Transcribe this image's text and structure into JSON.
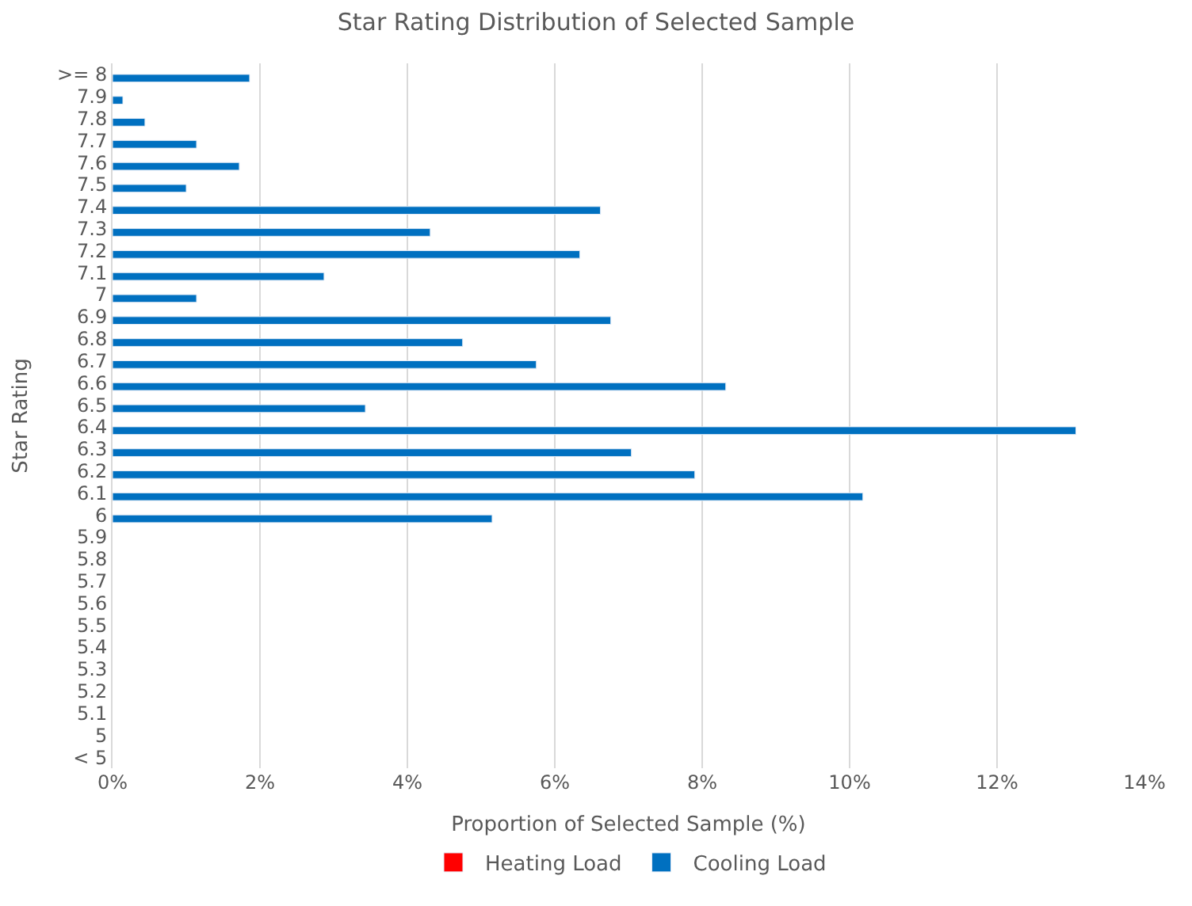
{
  "chart_data": {
    "type": "bar",
    "orientation": "horizontal",
    "title": "Star Rating Distribution of Selected Sample",
    "xlabel": "Proportion of Selected Sample (%)",
    "ylabel": "Star Rating",
    "categories": [
      ">= 8",
      "7.9",
      "7.8",
      "7.7",
      "7.6",
      "7.5",
      "7.4",
      "7.3",
      "7.2",
      "7.1",
      "7",
      "6.9",
      "6.8",
      "6.7",
      "6.6",
      "6.5",
      "6.4",
      "6.3",
      "6.2",
      "6.1",
      "6",
      "5.9",
      "5.8",
      "5.7",
      "5.6",
      "5.5",
      "5.4",
      "5.3",
      "5.2",
      "5.1",
      "5",
      "< 5"
    ],
    "series": [
      {
        "name": "Heating Load",
        "color": "#ff0000",
        "values": [
          null,
          null,
          null,
          null,
          null,
          null,
          null,
          null,
          null,
          null,
          null,
          null,
          null,
          null,
          null,
          null,
          null,
          null,
          null,
          null,
          null,
          null,
          null,
          null,
          null,
          null,
          null,
          null,
          null,
          null,
          null,
          null
        ]
      },
      {
        "name": "Cooling Load",
        "color": "#0070c0",
        "values": [
          1.86,
          0.14,
          0.44,
          1.14,
          1.72,
          1.0,
          6.62,
          4.31,
          6.34,
          2.87,
          1.14,
          6.76,
          4.75,
          5.75,
          8.32,
          3.43,
          13.07,
          7.04,
          7.9,
          10.18,
          5.15,
          null,
          null,
          null,
          null,
          null,
          null,
          null,
          null,
          null,
          null,
          null
        ]
      }
    ],
    "xlim": [
      0,
      14
    ],
    "xticks": [
      {
        "value": 0,
        "label": "0%"
      },
      {
        "value": 2,
        "label": "2%"
      },
      {
        "value": 4,
        "label": "4%"
      },
      {
        "value": 6,
        "label": "6%"
      },
      {
        "value": 8,
        "label": "8%"
      },
      {
        "value": 10,
        "label": "10%"
      },
      {
        "value": 12,
        "label": "12%"
      },
      {
        "value": 14,
        "label": "14%"
      }
    ],
    "grid": "x",
    "legend": "bottom"
  }
}
